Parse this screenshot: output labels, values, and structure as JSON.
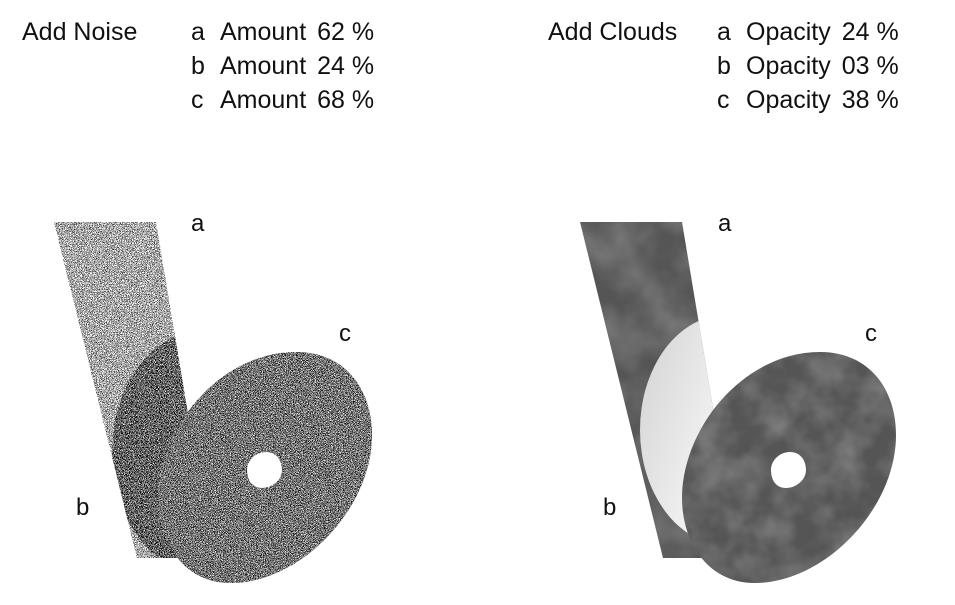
{
  "noise_panel": {
    "title": "Add Noise",
    "settings": [
      {
        "letter": "a",
        "label": "Amount",
        "value": "62 %"
      },
      {
        "letter": "b",
        "label": "Amount",
        "value": "24 %"
      },
      {
        "letter": "c",
        "label": "Amount",
        "value": "68 %"
      }
    ],
    "labels": {
      "a": "a",
      "b": "b",
      "c": "c"
    }
  },
  "clouds_panel": {
    "title": "Add Clouds",
    "settings": [
      {
        "letter": "a",
        "label": "Opacity",
        "value": "24 %"
      },
      {
        "letter": "b",
        "label": "Opacity",
        "value": "03 %"
      },
      {
        "letter": "c",
        "label": "Opacity",
        "value": "38 %"
      }
    ],
    "labels": {
      "a": "a",
      "b": "b",
      "c": "c"
    }
  },
  "colors": {
    "shape_fill": "#555555",
    "highlight": "#e8e8e8",
    "background": "#ffffff"
  }
}
